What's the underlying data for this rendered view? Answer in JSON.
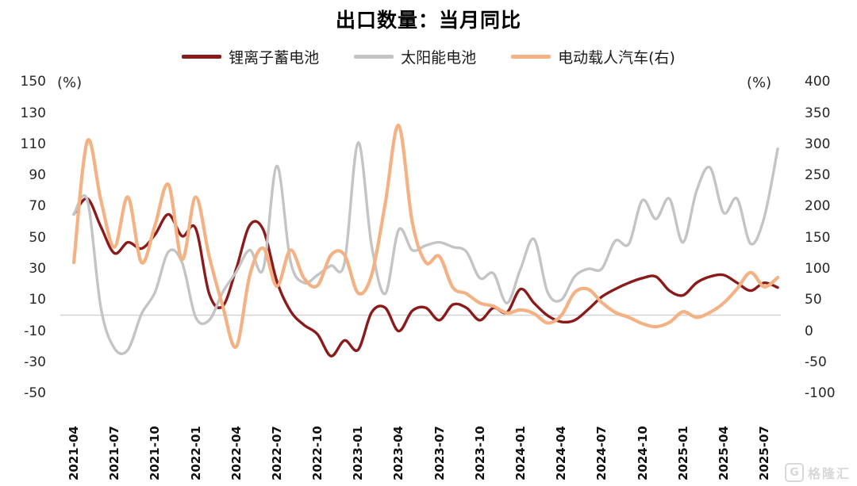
{
  "title": "出口数量：当月同比",
  "axes": {
    "left_unit": "(%)",
    "right_unit": "(%)",
    "left_ticks": [
      150,
      130,
      110,
      90,
      70,
      50,
      30,
      10,
      -10,
      -30,
      -50
    ],
    "right_ticks": [
      400,
      350,
      300,
      250,
      200,
      150,
      100,
      50,
      0,
      -50,
      -100
    ]
  },
  "colors": {
    "gridline": "#d2d2d2",
    "lithium": "#8B1B1B",
    "solar": "#C4C4C4",
    "ev": "#F4B183"
  },
  "watermark": {
    "logo": "G",
    "text": "格隆汇"
  },
  "chart_data": {
    "type": "line",
    "title": "出口数量：当月同比",
    "left_ylim": [
      -50,
      150
    ],
    "right_ylim": [
      -100,
      400
    ],
    "grid": "zero-line-only",
    "legend_position": "top",
    "x": [
      "2021-04",
      "2021-05",
      "2021-06",
      "2021-07",
      "2021-08",
      "2021-09",
      "2021-10",
      "2021-11",
      "2021-12",
      "2022-01",
      "2022-02",
      "2022-03",
      "2022-04",
      "2022-05",
      "2022-06",
      "2022-07",
      "2022-08",
      "2022-09",
      "2022-10",
      "2022-11",
      "2022-12",
      "2023-01",
      "2023-02",
      "2023-03",
      "2023-04",
      "2023-05",
      "2023-06",
      "2023-07",
      "2023-08",
      "2023-09",
      "2023-10",
      "2023-11",
      "2023-12",
      "2024-01",
      "2024-02",
      "2024-03",
      "2024-04",
      "2024-05",
      "2024-06",
      "2024-07",
      "2024-08",
      "2024-09",
      "2024-10",
      "2024-11",
      "2024-12",
      "2025-01",
      "2025-02",
      "2025-03",
      "2025-04",
      "2025-05",
      "2025-06",
      "2025-07",
      "2025-08"
    ],
    "x_tick_labels": [
      "2021-04",
      "2021-07",
      "2021-10",
      "2022-01",
      "2022-04",
      "2022-07",
      "2022-10",
      "2023-01",
      "2023-04",
      "2023-07",
      "2023-10",
      "2024-01",
      "2024-04",
      "2024-07",
      "2024-10",
      "2025-01",
      "2025-04",
      "2025-07"
    ],
    "series": [
      {
        "id": "lithium",
        "name": "锂离子蓄电池",
        "axis": "left",
        "color": "#8B1B1B",
        "width": 3.4,
        "values": [
          65,
          75,
          57,
          40,
          47,
          43,
          52,
          65,
          51,
          56,
          14,
          6,
          30,
          58,
          55,
          22,
          3,
          -6,
          -12,
          -26,
          -16,
          -22,
          2,
          5,
          -10,
          3,
          5,
          -3,
          7,
          5,
          -3,
          5,
          2,
          17,
          8,
          0,
          -4,
          -3,
          4,
          12,
          17,
          21,
          24,
          25,
          16,
          13,
          21,
          25,
          26,
          21,
          16,
          21,
          18
        ]
      },
      {
        "id": "solar",
        "name": "太阳能电池",
        "axis": "left",
        "color": "#C4C4C4",
        "width": 3.4,
        "values": [
          65,
          74,
          5,
          -21,
          -22,
          1,
          15,
          41,
          34,
          -1,
          -3,
          15,
          28,
          42,
          30,
          96,
          35,
          21,
          26,
          32,
          34,
          111,
          45,
          14,
          55,
          42,
          45,
          47,
          44,
          41,
          24,
          27,
          8,
          30,
          49,
          15,
          10,
          25,
          30,
          30,
          48,
          46,
          74,
          62,
          75,
          47,
          80,
          95,
          66,
          75,
          46,
          63,
          107
        ]
      },
      {
        "id": "ev",
        "name": "电动载人汽车(右)",
        "axis": "right",
        "color": "#F4B183",
        "width": 4.2,
        "values": [
          110,
          305,
          210,
          135,
          215,
          110,
          170,
          235,
          115,
          215,
          120,
          40,
          -25,
          90,
          133,
          72,
          130,
          85,
          73,
          122,
          122,
          61,
          90,
          204,
          330,
          175,
          110,
          120,
          70,
          60,
          45,
          40,
          29,
          34,
          28,
          13,
          25,
          62,
          67,
          46,
          30,
          22,
          12,
          7,
          14,
          31,
          22,
          30,
          45,
          68,
          94,
          71,
          86
        ]
      }
    ]
  }
}
